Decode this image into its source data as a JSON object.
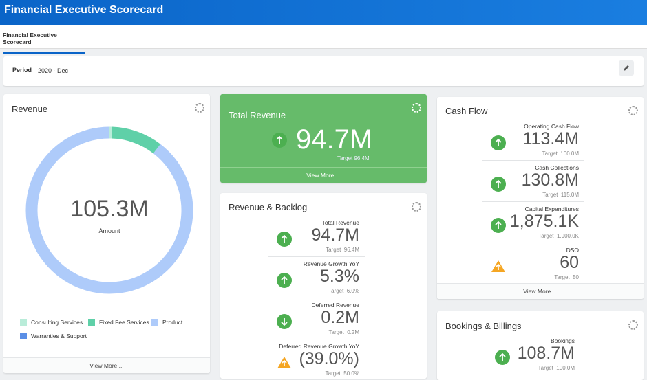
{
  "header": {
    "title": "Financial Executive Scorecard"
  },
  "tabs": [
    "Financial Executive Scorecard"
  ],
  "period": {
    "label": "Period",
    "value": "2020 - Dec"
  },
  "revenue": {
    "title": "Revenue",
    "total": "105.3M",
    "total_label": "Amount",
    "view_more": "View More ...",
    "chart_data": {
      "type": "pie",
      "categories": [
        "Consulting Services",
        "Fixed Fee Services",
        "Product",
        "Warranties & Support"
      ],
      "values": [
        0.5,
        10.5,
        94.3,
        0
      ],
      "colors": [
        "#b9ecd9",
        "#5fd0a8",
        "#aecbfa",
        "#5b8fe6"
      ]
    }
  },
  "total_revenue": {
    "title": "Total Revenue",
    "value": "94.7M",
    "target": "Target  96.4M",
    "trend": "up",
    "view_more": "View More ..."
  },
  "revenue_backlog": {
    "title": "Revenue & Backlog",
    "metrics": [
      {
        "label": "Total Revenue",
        "value": "94.7M",
        "target": "Target  96.4M",
        "trend": "up"
      },
      {
        "label": "Revenue Growth YoY",
        "value": "5.3%",
        "target": "Target  6.0%",
        "trend": "up"
      },
      {
        "label": "Deferred Revenue",
        "value": "0.2M",
        "target": "Target  0.2M",
        "trend": "down"
      },
      {
        "label": "Deferred Revenue Growth YoY",
        "value": "(39.0%)",
        "target": "Target  50.0%",
        "trend": "warning"
      }
    ]
  },
  "cash_flow": {
    "title": "Cash Flow",
    "view_more": "View More ...",
    "metrics": [
      {
        "label": "Operating Cash Flow",
        "value": "113.4M",
        "target": "Target  100.0M",
        "trend": "up"
      },
      {
        "label": "Cash Collections",
        "value": "130.8M",
        "target": "Target  115.0M",
        "trend": "up"
      },
      {
        "label": "Capital Expenditures",
        "value": "1,875.1K",
        "target": "Target  1,900.0K",
        "trend": "up"
      },
      {
        "label": "DSO",
        "value": "60",
        "target": "Target  50",
        "trend": "warning"
      }
    ]
  },
  "bookings": {
    "title": "Bookings & Billings",
    "metrics": [
      {
        "label": "Bookings",
        "value": "108.7M",
        "target": "Target  100.0M",
        "trend": "up"
      }
    ]
  }
}
